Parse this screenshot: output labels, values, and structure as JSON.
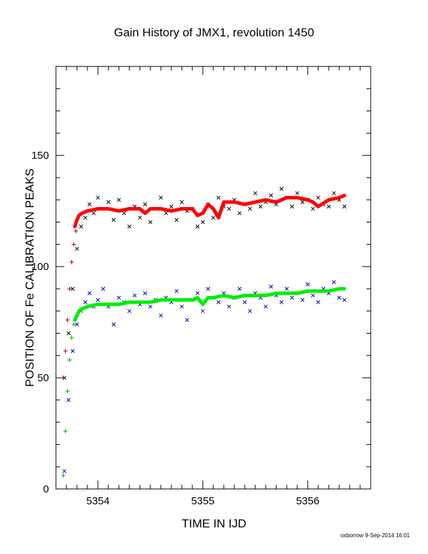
{
  "chart_data": {
    "type": "scatter",
    "title": "Gain History of JMX1, revolution 1450",
    "xlabel": "TIME IN IJD",
    "ylabel": "POSITION OF Fe CALIBRATION PEAKS",
    "xlim": [
      5353.6,
      5356.6
    ],
    "ylim": [
      0,
      190
    ],
    "x_ticks": [
      5354,
      5355,
      5356
    ],
    "y_ticks": [
      0,
      50,
      100,
      150
    ],
    "grid": false,
    "footer": "oxborrow  9-Sep-2014 16:01",
    "colors": {
      "upper_data": "#000000",
      "upper_fit": "#ff0000",
      "upper_start": "#aa0000",
      "lower_data": "#0000cc",
      "lower_fit": "#00ee00",
      "lower_start": "#00aa00"
    },
    "series": [
      {
        "marker": "x",
        "color": "#000000",
        "description_x": [
          5353.68,
          5356.35
        ],
        "x": [
          5353.68,
          5353.72,
          5353.76,
          5353.8,
          5353.84,
          5353.88,
          5353.92,
          5353.96,
          5354.0,
          5354.05,
          5354.1,
          5354.15,
          5354.2,
          5354.25,
          5354.3,
          5354.35,
          5354.4,
          5354.45,
          5354.5,
          5354.55,
          5354.6,
          5354.65,
          5354.7,
          5354.75,
          5354.8,
          5354.85,
          5354.9,
          5354.95,
          5355.0,
          5355.05,
          5355.1,
          5355.15,
          5355.2,
          5355.25,
          5355.3,
          5355.35,
          5355.4,
          5355.45,
          5355.5,
          5355.55,
          5355.6,
          5355.65,
          5355.7,
          5355.75,
          5355.8,
          5355.85,
          5355.9,
          5355.95,
          5356.0,
          5356.05,
          5356.1,
          5356.15,
          5356.2,
          5356.25,
          5356.3,
          5356.35
        ],
        "y": [
          50,
          70,
          90,
          108,
          118,
          122,
          128,
          124,
          131,
          126,
          129,
          121,
          130,
          124,
          118,
          127,
          122,
          128,
          120,
          126,
          131,
          124,
          127,
          121,
          129,
          125,
          126,
          118,
          120,
          128,
          122,
          131,
          127,
          126,
          130,
          124,
          128,
          126,
          133,
          127,
          129,
          132,
          128,
          135,
          131,
          127,
          133,
          129,
          130,
          126,
          131,
          128,
          127,
          133,
          130,
          127
        ]
      },
      {
        "marker": "line",
        "color": "#ff0000",
        "x": [
          5353.78,
          5353.8,
          5353.82,
          5353.85,
          5353.9,
          5354.0,
          5354.1,
          5354.2,
          5354.3,
          5354.4,
          5354.45,
          5354.5,
          5354.6,
          5354.7,
          5354.8,
          5354.9,
          5354.95,
          5355.0,
          5355.05,
          5355.1,
          5355.15,
          5355.2,
          5355.3,
          5355.4,
          5355.5,
          5355.6,
          5355.7,
          5355.8,
          5355.9,
          5356.0,
          5356.05,
          5356.1,
          5356.2,
          5356.3,
          5356.35
        ],
        "y": [
          118,
          121,
          123,
          124,
          125,
          126,
          126,
          125,
          126,
          126,
          124,
          126,
          126,
          125,
          126,
          126,
          123,
          124,
          128,
          126,
          122,
          129,
          129,
          128,
          129,
          130,
          129,
          131,
          131,
          130,
          129,
          127,
          130,
          131,
          132
        ]
      },
      {
        "marker": "+",
        "color": "#aa0000",
        "x": [
          5353.67,
          5353.69,
          5353.71,
          5353.73,
          5353.75,
          5353.77,
          5353.79
        ],
        "y": [
          50,
          62,
          76,
          90,
          102,
          110,
          116
        ]
      },
      {
        "marker": "x",
        "color": "#0000cc",
        "x": [
          5353.68,
          5353.72,
          5353.76,
          5353.8,
          5353.84,
          5353.88,
          5353.92,
          5353.96,
          5354.0,
          5354.05,
          5354.1,
          5354.15,
          5354.2,
          5354.25,
          5354.3,
          5354.35,
          5354.4,
          5354.45,
          5354.5,
          5354.55,
          5354.6,
          5354.65,
          5354.7,
          5354.75,
          5354.8,
          5354.85,
          5354.9,
          5354.95,
          5355.0,
          5355.05,
          5355.1,
          5355.15,
          5355.2,
          5355.25,
          5355.3,
          5355.35,
          5355.4,
          5355.45,
          5355.5,
          5355.55,
          5355.6,
          5355.65,
          5355.7,
          5355.75,
          5355.8,
          5355.85,
          5355.9,
          5355.95,
          5356.0,
          5356.05,
          5356.1,
          5356.15,
          5356.2,
          5356.25,
          5356.3,
          5356.35
        ],
        "y": [
          8,
          40,
          62,
          74,
          80,
          84,
          88,
          82,
          85,
          90,
          82,
          74,
          86,
          84,
          80,
          87,
          83,
          88,
          82,
          85,
          78,
          86,
          84,
          89,
          82,
          76,
          85,
          88,
          80,
          90,
          86,
          84,
          88,
          82,
          86,
          90,
          84,
          80,
          88,
          86,
          82,
          91,
          87,
          84,
          90,
          86,
          88,
          85,
          92,
          87,
          84,
          90,
          88,
          93,
          86,
          85
        ]
      },
      {
        "marker": "line",
        "color": "#00ee00",
        "x": [
          5353.78,
          5353.8,
          5353.82,
          5353.85,
          5353.9,
          5354.0,
          5354.1,
          5354.2,
          5354.3,
          5354.4,
          5354.5,
          5354.6,
          5354.7,
          5354.8,
          5354.9,
          5354.95,
          5355.0,
          5355.05,
          5355.1,
          5355.2,
          5355.3,
          5355.4,
          5355.5,
          5355.6,
          5355.7,
          5355.8,
          5355.9,
          5356.0,
          5356.1,
          5356.2,
          5356.3,
          5356.35
        ],
        "y": [
          76,
          78,
          80,
          81,
          82,
          83,
          83,
          83,
          84,
          84,
          84,
          85,
          85,
          85,
          85,
          86,
          83,
          86,
          86,
          87,
          86,
          87,
          87,
          87,
          88,
          88,
          88,
          89,
          89,
          89,
          90,
          90
        ]
      },
      {
        "marker": "+",
        "color": "#00aa00",
        "x": [
          5353.67,
          5353.69,
          5353.71,
          5353.73,
          5353.75,
          5353.77
        ],
        "y": [
          6,
          26,
          44,
          58,
          68,
          74
        ]
      }
    ]
  }
}
